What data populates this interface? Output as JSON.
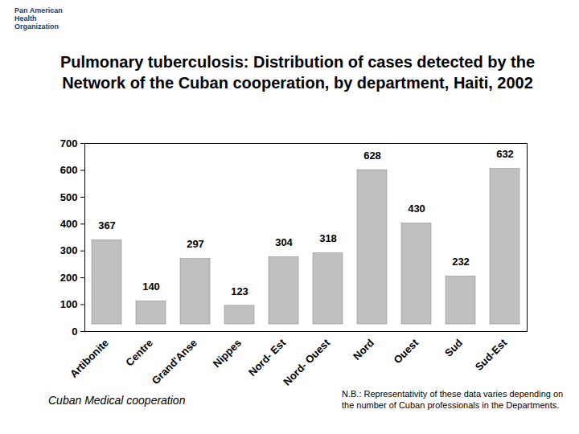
{
  "chart_data": {
    "type": "bar",
    "title": "Pulmonary tuberculosis: Distribution of cases detected by the Network of the Cuban cooperation, by department, Haiti, 2002",
    "categories": [
      "Artibonite",
      "Centre",
      "Grand'Anse",
      "Nippes",
      "Nord- Est",
      "Nord- Ouest",
      "Nord",
      "Ouest",
      "Sud",
      "Sud-Est"
    ],
    "values": [
      367,
      140,
      297,
      123,
      304,
      318,
      628,
      430,
      232,
      632
    ],
    "color": "#c0c0c0",
    "ylim": [
      0,
      700
    ],
    "yticks": [
      0,
      100,
      200,
      300,
      400,
      500,
      600,
      700
    ],
    "grid": false,
    "data_labels": true,
    "annotations": [
      "Pan American Health Organization",
      "Cuban Medical cooperation",
      "N.B.: Representativity of these data varies depending on the number of Cuban professionals in the Departments."
    ]
  }
}
